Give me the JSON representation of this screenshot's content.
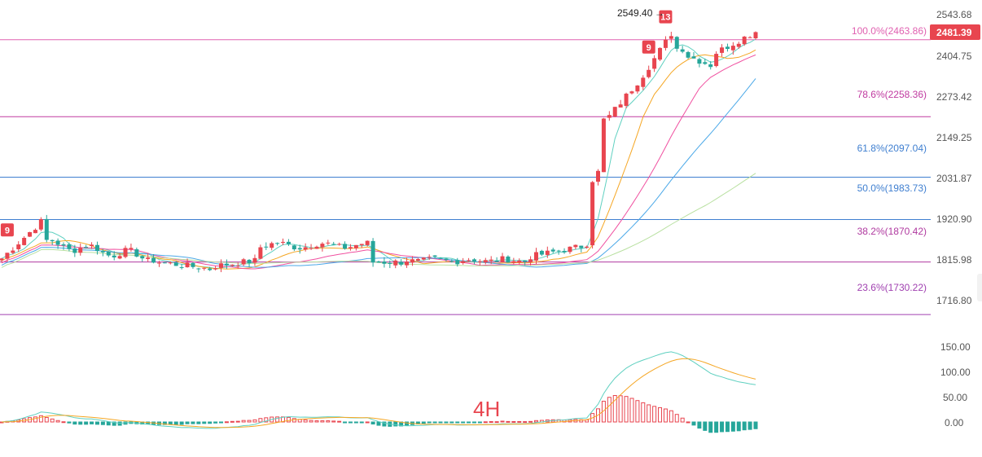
{
  "timeframe": "4H",
  "price_axis": {
    "ticks": [
      "2543.68",
      "2404.75",
      "2273.42",
      "2149.25",
      "2031.87",
      "1920.90",
      "1815.98",
      "1716.80"
    ],
    "tick_values": [
      2543.68,
      2404.75,
      2273.42,
      2149.25,
      2031.87,
      1920.9,
      1815.98,
      1716.8
    ]
  },
  "macd_axis": {
    "ticks": [
      "150.00",
      "100.00",
      "50.00",
      "0.00"
    ],
    "tick_values": [
      150,
      100,
      50,
      0
    ]
  },
  "current_price": {
    "label": "2481.39",
    "value": 2481.39,
    "color": "#e8454f"
  },
  "peak": {
    "label": "2549.40",
    "value": 2549.4
  },
  "fib_levels": [
    {
      "label": "100.0%(2463.86)",
      "value": 2463.86,
      "color": "#e060b0"
    },
    {
      "label": "78.6%(2258.36)",
      "value": 2258.36,
      "color": "#c03aa0"
    },
    {
      "label": "61.8%(2097.04)",
      "value": 2097.04,
      "color": "#3f7fd0"
    },
    {
      "label": "50.0%(1983.73)",
      "value": 1983.73,
      "color": "#3f7fd0"
    },
    {
      "label": "38.2%(1870.42)",
      "value": 1870.42,
      "color": "#b03aa0"
    },
    {
      "label": "23.6%(1730.22)",
      "value": 1730.22,
      "color": "#a040b0"
    }
  ],
  "td_markers": [
    {
      "label": "9",
      "candle": 1
    },
    {
      "label": "9",
      "candle": 115
    },
    {
      "label": "13",
      "candle": 118
    }
  ],
  "colors": {
    "up": "#e8454f",
    "down": "#26a69a",
    "dif": "#5fd0c0",
    "dea": "#f5a623"
  },
  "chart_data": {
    "type": "candlestick",
    "candle_count": 135,
    "y_range": [
      1700,
      2570
    ],
    "moving_averages": [
      {
        "color": "#5fd0c0"
      },
      {
        "color": "#f5a623"
      },
      {
        "color": "#f050a0"
      },
      {
        "color": "#4aa8e8"
      },
      {
        "color": "#b8e0a0"
      }
    ],
    "macd": {
      "y_range": [
        -35,
        160
      ],
      "colors": [
        "#5fd0c0",
        "#f5a623"
      ]
    }
  }
}
